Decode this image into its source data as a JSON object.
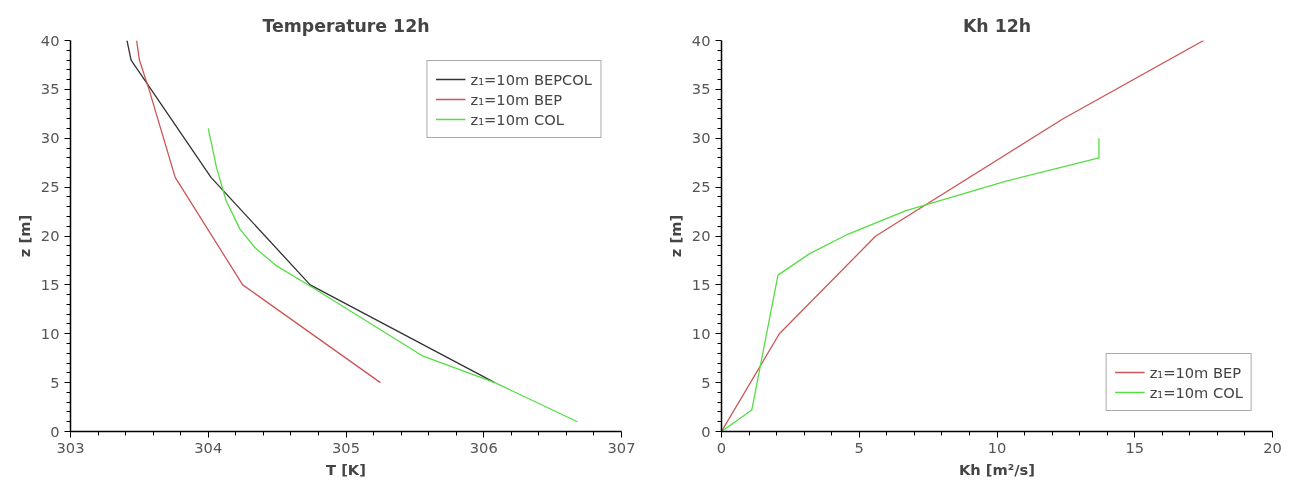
{
  "chart_data": [
    {
      "type": "line",
      "title": "Temperature 12h",
      "xlabel": "T [K]",
      "ylabel": "z [m]",
      "xlim": [
        303,
        307
      ],
      "ylim": [
        0,
        40
      ],
      "xticks": [
        303,
        304,
        305,
        306,
        307
      ],
      "yticks": [
        0,
        5,
        10,
        15,
        20,
        25,
        30,
        35,
        40
      ],
      "legend": "top right",
      "grid": false,
      "series": [
        {
          "name": "z₁=10m BEPCOL",
          "color": "#333333",
          "x": [
            303.41,
            303.44,
            304.02,
            304.74,
            306.08
          ],
          "values": [
            40,
            38,
            26,
            15,
            5
          ]
        },
        {
          "name": "z₁=10m BEP",
          "color": "#cc5555",
          "x": [
            303.48,
            303.5,
            303.57,
            303.76,
            304.25,
            305.25
          ],
          "values": [
            40,
            38,
            35,
            26,
            15,
            5
          ]
        },
        {
          "name": "z₁=10m COL",
          "color": "#55dd44",
          "x": [
            304.0,
            304.06,
            304.13,
            304.23,
            304.34,
            304.49,
            304.76,
            305.56,
            306.08,
            306.68
          ],
          "values": [
            31,
            27,
            23.6,
            20.7,
            18.8,
            17,
            14.7,
            7.7,
            5,
            1
          ]
        }
      ]
    },
    {
      "type": "line",
      "title": "Kh 12h",
      "xlabel": "Kh [m²/s]",
      "ylabel": "z [m]",
      "xlim": [
        0,
        20
      ],
      "ylim": [
        0,
        40
      ],
      "xticks": [
        0,
        5,
        10,
        15,
        20
      ],
      "yticks": [
        0,
        5,
        10,
        15,
        20,
        25,
        30,
        35,
        40
      ],
      "legend": "bottom right",
      "grid": false,
      "series": [
        {
          "name": "z₁=10m BEP",
          "color": "#cc5555",
          "x": [
            0,
            2.1,
            5.6,
            12.4,
            17.5
          ],
          "values": [
            0,
            10,
            20,
            32,
            40
          ]
        },
        {
          "name": "z₁=10m COL",
          "color": "#55dd44",
          "x": [
            0,
            1.1,
            2.05,
            3.2,
            4.6,
            6.7,
            10.3,
            13.7,
            13.7
          ],
          "values": [
            0,
            2.2,
            16,
            18.2,
            20.2,
            22.6,
            25.6,
            28,
            30
          ]
        }
      ]
    }
  ]
}
